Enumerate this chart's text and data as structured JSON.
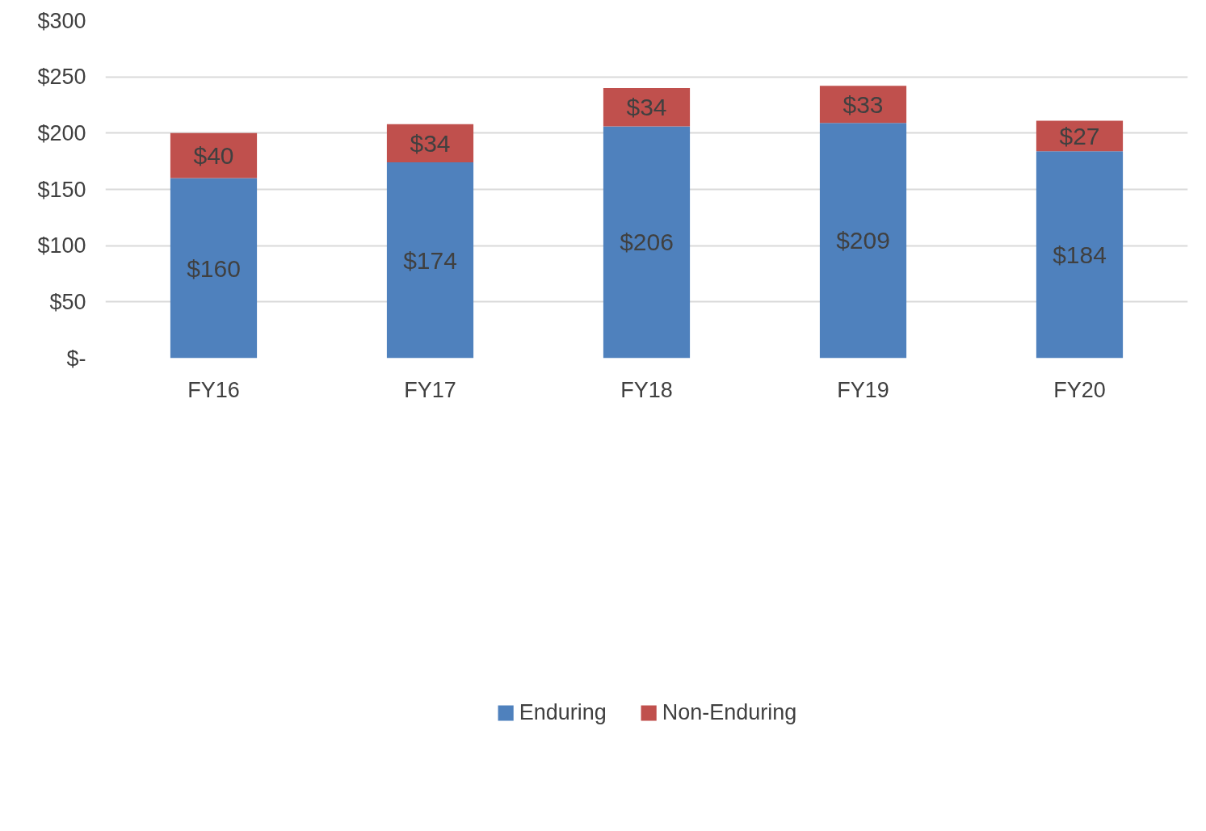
{
  "chart_data": {
    "type": "bar",
    "stacked": true,
    "categories": [
      "FY16",
      "FY17",
      "FY18",
      "FY19",
      "FY20"
    ],
    "series": [
      {
        "name": "Enduring",
        "color": "#4f81bd",
        "values": [
          160,
          174,
          206,
          209,
          184
        ],
        "value_labels": [
          "$160",
          "$174",
          "$206",
          "$209",
          "$184"
        ]
      },
      {
        "name": "Non-Enduring",
        "color": "#c0504d",
        "values": [
          40,
          34,
          34,
          33,
          27
        ],
        "value_labels": [
          "$40",
          "$34",
          "$34",
          "$33",
          "$27"
        ]
      }
    ],
    "ylim": [
      0,
      300
    ],
    "yticks": [
      {
        "value": 0,
        "label": "$-"
      },
      {
        "value": 50,
        "label": "$50"
      },
      {
        "value": 100,
        "label": "$100"
      },
      {
        "value": 150,
        "label": "$150"
      },
      {
        "value": 200,
        "label": "$200"
      },
      {
        "value": 250,
        "label": "$250"
      },
      {
        "value": 300,
        "label": "$300"
      }
    ],
    "grid": "y",
    "legend": "bottom"
  }
}
